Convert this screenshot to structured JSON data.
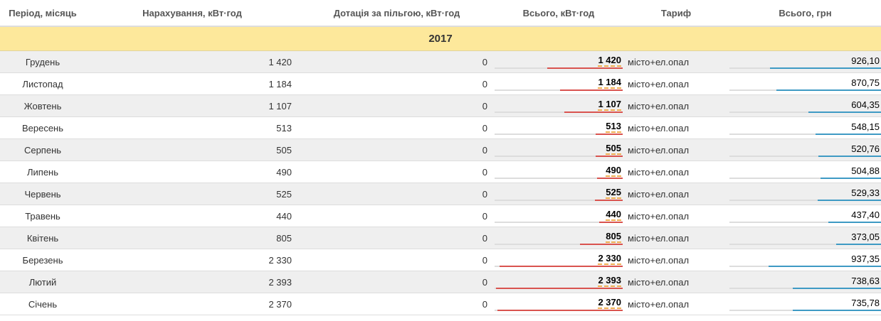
{
  "header": {
    "period": "Період, місяць",
    "accrual": "Нарахування, кВт·год",
    "subsidy": "Дотація за пільгою, кВт·год",
    "total_kwh": "Всього, кВт·год",
    "tariff": "Тариф",
    "total_uah": "Всього, грн"
  },
  "year": "2017",
  "colors": {
    "year_bg": "#fde89b",
    "kwh_bar": "#d9534f",
    "kwh_underline": "#f0ad4e",
    "uah_bar": "#3e9ac4"
  },
  "rows": [
    {
      "month": "Грудень",
      "accrual": "1 420",
      "subsidy": "0",
      "total_kwh": "1 420",
      "tariff": "місто+ел.опал",
      "total_uah": "926,10",
      "kwh_level": 0.593,
      "uah_level": 0.988
    },
    {
      "month": "Листопад",
      "accrual": "1 184",
      "subsidy": "0",
      "total_kwh": "1 184",
      "tariff": "місто+ел.опал",
      "total_uah": "870,75",
      "kwh_level": 0.495,
      "uah_level": 0.929
    },
    {
      "month": "Жовтень",
      "accrual": "1 107",
      "subsidy": "0",
      "total_kwh": "1 107",
      "tariff": "місто+ел.опал",
      "total_uah": "604,35",
      "kwh_level": 0.463,
      "uah_level": 0.645
    },
    {
      "month": "Вересень",
      "accrual": "513",
      "subsidy": "0",
      "total_kwh": "513",
      "tariff": "місто+ел.опал",
      "total_uah": "548,15",
      "kwh_level": 0.214,
      "uah_level": 0.585
    },
    {
      "month": "Серпень",
      "accrual": "505",
      "subsidy": "0",
      "total_kwh": "505",
      "tariff": "місто+ел.опал",
      "total_uah": "520,76",
      "kwh_level": 0.211,
      "uah_level": 0.556
    },
    {
      "month": "Липень",
      "accrual": "490",
      "subsidy": "0",
      "total_kwh": "490",
      "tariff": "місто+ел.опал",
      "total_uah": "504,88",
      "kwh_level": 0.205,
      "uah_level": 0.539
    },
    {
      "month": "Червень",
      "accrual": "525",
      "subsidy": "0",
      "total_kwh": "525",
      "tariff": "місто+ел.опал",
      "total_uah": "529,33",
      "kwh_level": 0.219,
      "uah_level": 0.565
    },
    {
      "month": "Травень",
      "accrual": "440",
      "subsidy": "0",
      "total_kwh": "440",
      "tariff": "місто+ел.опал",
      "total_uah": "437,40",
      "kwh_level": 0.184,
      "uah_level": 0.467
    },
    {
      "month": "Квітень",
      "accrual": "805",
      "subsidy": "0",
      "total_kwh": "805",
      "tariff": "місто+ел.опал",
      "total_uah": "373,05",
      "kwh_level": 0.336,
      "uah_level": 0.398
    },
    {
      "month": "Березень",
      "accrual": "2 330",
      "subsidy": "0",
      "total_kwh": "2 330",
      "tariff": "місто+ел.опал",
      "total_uah": "937,35",
      "kwh_level": 0.974,
      "uah_level": 1.0
    },
    {
      "month": "Лютий",
      "accrual": "2 393",
      "subsidy": "0",
      "total_kwh": "2 393",
      "tariff": "місто+ел.опал",
      "total_uah": "738,63",
      "kwh_level": 1.0,
      "uah_level": 0.788
    },
    {
      "month": "Січень",
      "accrual": "2 370",
      "subsidy": "0",
      "total_kwh": "2 370",
      "tariff": "місто+ел.опал",
      "total_uah": "735,78",
      "kwh_level": 0.99,
      "uah_level": 0.785
    }
  ]
}
